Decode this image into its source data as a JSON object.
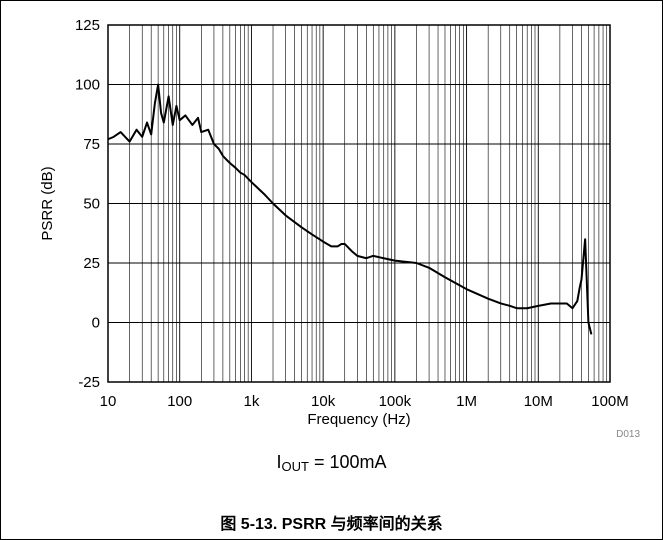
{
  "chart_data": {
    "type": "line",
    "title": "",
    "xlabel": "Frequency (Hz)",
    "ylabel": "PSRR (dB)",
    "xscale": "log",
    "xlim": [
      10,
      100000000
    ],
    "ylim": [
      -25,
      125
    ],
    "x_ticks": [
      10,
      100,
      1000,
      10000,
      100000,
      1000000,
      10000000,
      100000000
    ],
    "x_tick_labels": [
      "10",
      "100",
      "1k",
      "10k",
      "100k",
      "1M",
      "10M",
      "100M"
    ],
    "y_ticks": [
      -25,
      0,
      25,
      50,
      75,
      100,
      125
    ],
    "y_tick_labels": [
      "-25",
      "0",
      "25",
      "50",
      "75",
      "100",
      "125"
    ],
    "grid": true,
    "legend": "none",
    "line_color": "#000000",
    "series": [
      {
        "x": [
          10,
          12,
          15,
          20,
          25,
          30,
          35,
          40,
          45,
          50,
          55,
          60,
          70,
          80,
          90,
          100,
          120,
          150,
          180,
          200,
          250,
          300,
          350,
          400,
          500,
          600,
          700,
          800,
          1000,
          1500,
          2000,
          3000,
          5000,
          7000,
          10000,
          13000,
          16000,
          18000,
          20000,
          25000,
          30000,
          40000,
          50000,
          70000,
          100000,
          200000,
          300000,
          500000,
          1000000,
          2000000,
          3000000,
          4000000,
          5000000,
          7000000,
          10000000,
          15000000,
          20000000,
          25000000,
          30000000,
          35000000,
          38000000,
          40000000,
          42000000,
          45000000,
          50000000,
          55000000
        ],
        "y": [
          77,
          78,
          80,
          76,
          81,
          78,
          84,
          79,
          92,
          100,
          88,
          84,
          95,
          83,
          91,
          85,
          87,
          83,
          86,
          80,
          81,
          75,
          73,
          70,
          67,
          65,
          63,
          62,
          59,
          54,
          50,
          45,
          40,
          37,
          34,
          32,
          32,
          33,
          33,
          30,
          28,
          27,
          28,
          27,
          26,
          25,
          23,
          19,
          14,
          10,
          8,
          7,
          6,
          6,
          7,
          8,
          8,
          8,
          6,
          9,
          15,
          18,
          25,
          35,
          0,
          -5
        ]
      }
    ]
  },
  "condition": {
    "prefix": "I",
    "subscript": "OUT",
    "suffix": " = 100mA"
  },
  "figure_code": "D013",
  "caption": "图 5-13. PSRR 与频率间的关系"
}
